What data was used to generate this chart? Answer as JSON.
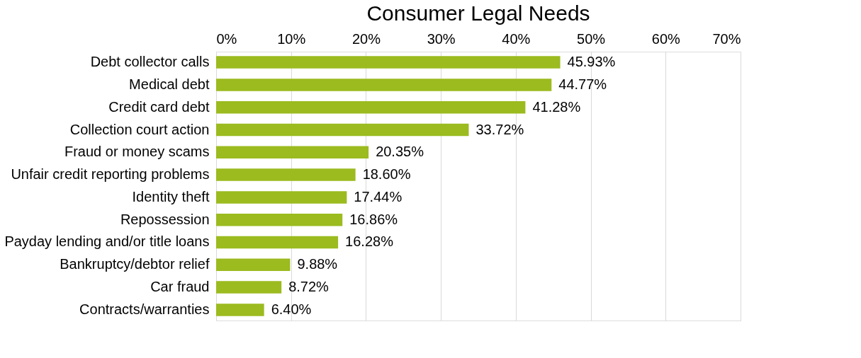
{
  "chart_data": {
    "type": "bar",
    "orientation": "horizontal",
    "title": "Consumer Legal Needs",
    "categories": [
      "Debt collector calls",
      "Medical debt",
      "Credit card debt",
      "Collection court action",
      "Fraud or money scams",
      "Unfair credit reporting problems",
      "Identity theft",
      "Repossession",
      "Payday lending and/or title loans",
      "Bankruptcy/debtor relief",
      "Car fraud",
      "Contracts/warranties"
    ],
    "values": [
      45.93,
      44.77,
      41.28,
      33.72,
      20.35,
      18.6,
      17.44,
      16.86,
      16.28,
      9.88,
      8.72,
      6.4
    ],
    "value_labels": [
      "45.93%",
      "44.77%",
      "41.28%",
      "33.72%",
      "20.35%",
      "18.60%",
      "17.44%",
      "16.86%",
      "16.28%",
      "9.88%",
      "8.72%",
      "6.40%"
    ],
    "color": "#9bbb1f",
    "xlim": [
      0,
      70
    ],
    "xticks": [
      {
        "value": 0,
        "label": "0%"
      },
      {
        "value": 10,
        "label": "10%"
      },
      {
        "value": 20,
        "label": "20%"
      },
      {
        "value": 30,
        "label": "30%"
      },
      {
        "value": 40,
        "label": "40%"
      },
      {
        "value": 50,
        "label": "50%"
      },
      {
        "value": 60,
        "label": "60%"
      },
      {
        "value": 70,
        "label": "70%"
      }
    ],
    "grid": "x"
  }
}
